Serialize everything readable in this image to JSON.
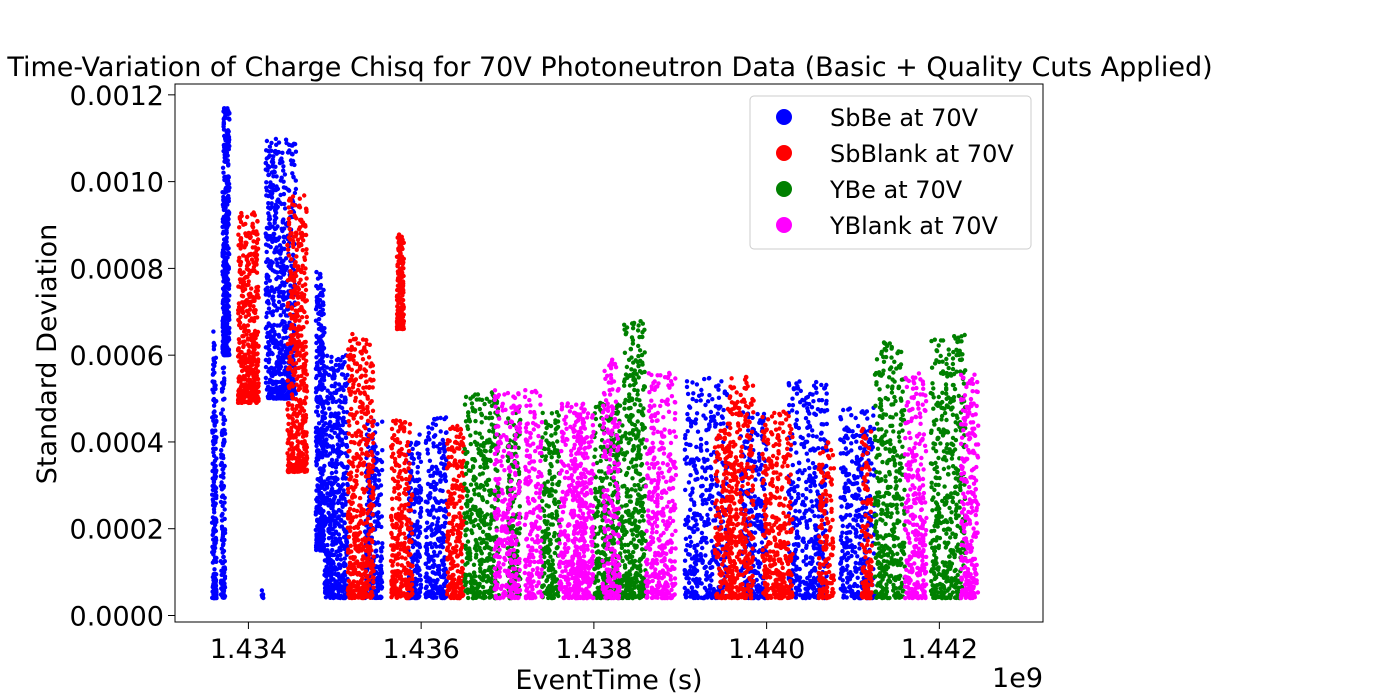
{
  "chart_data": {
    "type": "scatter",
    "title": "Time-Variation of Charge Chisq for 70V Photoneutron Data (Basic + Quality Cuts Applied)",
    "xlabel": "EventTime (s)",
    "ylabel": "Standard Deviation",
    "x_offset_label": "1e9",
    "xlim": [
      1.43315,
      1.4432
    ],
    "ylim": [
      -1.5e-05,
      0.001225
    ],
    "x_ticks": [
      1.434,
      1.436,
      1.438,
      1.44,
      1.442
    ],
    "x_tick_labels": [
      "1.434",
      "1.436",
      "1.438",
      "1.440",
      "1.442"
    ],
    "y_ticks": [
      0.0,
      0.0002,
      0.0004,
      0.0006,
      0.0008,
      0.001,
      0.0012
    ],
    "y_tick_labels": [
      "0.0000",
      "0.0002",
      "0.0004",
      "0.0006",
      "0.0008",
      "0.0010",
      "0.0012"
    ],
    "grid": false,
    "legend_position": "top-right",
    "series": [
      {
        "name": "SbBe at 70V",
        "color": "#0000ff",
        "clusters": [
          {
            "x": [
              1.43358,
              1.43363
            ],
            "y": [
              4e-05,
              0.00066
            ],
            "n": 200
          },
          {
            "x": [
              1.43368,
              1.43373
            ],
            "y": [
              4e-05,
              0.00058
            ],
            "n": 130
          },
          {
            "x": [
              1.4337,
              1.43378
            ],
            "y": [
              0.0006,
              0.00117
            ],
            "n": 420
          },
          {
            "x": [
              1.43415,
              1.43418
            ],
            "y": [
              4e-05,
              6e-05
            ],
            "n": 6
          },
          {
            "x": [
              1.4342,
              1.43455
            ],
            "y": [
              0.0005,
              0.0011
            ],
            "n": 650
          },
          {
            "x": [
              1.43478,
              1.43488
            ],
            "y": [
              0.00015,
              0.0008
            ],
            "n": 380
          },
          {
            "x": [
              1.43488,
              1.43515
            ],
            "y": [
              4e-05,
              0.0006
            ],
            "n": 520
          },
          {
            "x": [
              1.43535,
              1.43555
            ],
            "y": [
              4e-05,
              0.00045
            ],
            "n": 260
          },
          {
            "x": [
              1.43585,
              1.436
            ],
            "y": [
              4e-05,
              0.00042
            ],
            "n": 200
          },
          {
            "x": [
              1.43605,
              1.4363
            ],
            "y": [
              4e-05,
              0.00046
            ],
            "n": 300
          },
          {
            "x": [
              1.43905,
              1.43955
            ],
            "y": [
              4e-05,
              0.00055
            ],
            "n": 420
          },
          {
            "x": [
              1.4397,
              1.44
            ],
            "y": [
              4e-05,
              0.00047
            ],
            "n": 300
          },
          {
            "x": [
              1.44025,
              1.4407
            ],
            "y": [
              4e-05,
              0.00054
            ],
            "n": 420
          },
          {
            "x": [
              1.44085,
              1.44125
            ],
            "y": [
              4e-05,
              0.00048
            ],
            "n": 380
          }
        ]
      },
      {
        "name": "SbBlank at 70V",
        "color": "#ff0000",
        "clusters": [
          {
            "x": [
              1.43388,
              1.43412
            ],
            "y": [
              0.00049,
              0.00093
            ],
            "n": 450
          },
          {
            "x": [
              1.43445,
              1.43468
            ],
            "y": [
              0.00033,
              0.00097
            ],
            "n": 480
          },
          {
            "x": [
              1.43515,
              1.43545
            ],
            "y": [
              4e-05,
              0.00065
            ],
            "n": 500
          },
          {
            "x": [
              1.43565,
              1.43578
            ],
            "y": [
              4e-05,
              0.00045
            ],
            "n": 180
          },
          {
            "x": [
              1.43572,
              1.4358
            ],
            "y": [
              0.00066,
              0.00088
            ],
            "n": 200
          },
          {
            "x": [
              1.4358,
              1.4359
            ],
            "y": [
              4e-05,
              0.00045
            ],
            "n": 120
          },
          {
            "x": [
              1.4363,
              1.4365
            ],
            "y": [
              4e-05,
              0.00044
            ],
            "n": 250
          },
          {
            "x": [
              1.4394,
              1.4396
            ],
            "y": [
              4e-05,
              0.00044
            ],
            "n": 200
          },
          {
            "x": [
              1.43955,
              1.43985
            ],
            "y": [
              4e-05,
              0.00055
            ],
            "n": 350
          },
          {
            "x": [
              1.43995,
              1.4403
            ],
            "y": [
              4e-05,
              0.00047
            ],
            "n": 350
          },
          {
            "x": [
              1.4406,
              1.44078
            ],
            "y": [
              4e-05,
              0.0004
            ],
            "n": 150
          },
          {
            "x": [
              1.4411,
              1.44122
            ],
            "y": [
              4e-05,
              0.00043
            ],
            "n": 120
          }
        ]
      },
      {
        "name": "YBe at 70V",
        "color": "#008000",
        "clusters": [
          {
            "x": [
              1.4365,
              1.4369
            ],
            "y": [
              4e-05,
              0.00052
            ],
            "n": 420
          },
          {
            "x": [
              1.437,
              1.43715
            ],
            "y": [
              4e-05,
              0.00048
            ],
            "n": 180
          },
          {
            "x": [
              1.4374,
              1.4376
            ],
            "y": [
              4e-05,
              0.00047
            ],
            "n": 220
          },
          {
            "x": [
              1.438,
              1.43835
            ],
            "y": [
              4e-05,
              0.00049
            ],
            "n": 380
          },
          {
            "x": [
              1.43835,
              1.4386
            ],
            "y": [
              4e-05,
              0.00068
            ],
            "n": 380
          },
          {
            "x": [
              1.44125,
              1.4416
            ],
            "y": [
              4e-05,
              0.00063
            ],
            "n": 380
          },
          {
            "x": [
              1.4419,
              1.4423
            ],
            "y": [
              4e-05,
              0.00065
            ],
            "n": 450
          }
        ]
      },
      {
        "name": "YBlank at 70V",
        "color": "#ff00ff",
        "clusters": [
          {
            "x": [
              1.43685,
              1.43715
            ],
            "y": [
              4e-05,
              0.00052
            ],
            "n": 300
          },
          {
            "x": [
              1.4372,
              1.4374
            ],
            "y": [
              4e-05,
              0.00052
            ],
            "n": 200
          },
          {
            "x": [
              1.4376,
              1.4379
            ],
            "y": [
              4e-05,
              0.00049
            ],
            "n": 320
          },
          {
            "x": [
              1.43775,
              1.438
            ],
            "y": [
              4e-05,
              0.00047
            ],
            "n": 250
          },
          {
            "x": [
              1.4381,
              1.4383
            ],
            "y": [
              4e-05,
              0.00059
            ],
            "n": 220
          },
          {
            "x": [
              1.4386,
              1.43895
            ],
            "y": [
              4e-05,
              0.00056
            ],
            "n": 380
          },
          {
            "x": [
              1.4416,
              1.44185
            ],
            "y": [
              4e-05,
              0.00056
            ],
            "n": 300
          },
          {
            "x": [
              1.44225,
              1.44245
            ],
            "y": [
              4e-05,
              0.00056
            ],
            "n": 260
          }
        ]
      }
    ]
  }
}
